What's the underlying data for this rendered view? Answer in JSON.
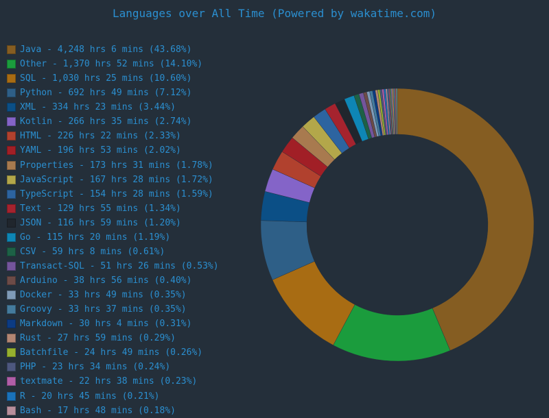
{
  "chart_data": {
    "type": "pie",
    "variant": "donut",
    "title": "Languages over All Time (Powered by wakatime.com)",
    "legend_position": "left",
    "slices": [
      {
        "name": "Java",
        "label": "Java - 4,248 hrs 6 mins (43.68%)",
        "percent": 43.68,
        "color": "#855d22"
      },
      {
        "name": "Other",
        "label": "Other - 1,370 hrs 52 mins (14.10%)",
        "percent": 14.1,
        "color": "#1b9c3d"
      },
      {
        "name": "SQL",
        "label": "SQL - 1,030 hrs 25 mins (10.60%)",
        "percent": 10.6,
        "color": "#a86c13"
      },
      {
        "name": "Python",
        "label": "Python - 692 hrs 49 mins (7.12%)",
        "percent": 7.12,
        "color": "#2e5f87"
      },
      {
        "name": "XML",
        "label": "XML - 334 hrs 23 mins (3.44%)",
        "percent": 3.44,
        "color": "#0b4f86"
      },
      {
        "name": "Kotlin",
        "label": "Kotlin - 266 hrs 35 mins (2.74%)",
        "percent": 2.74,
        "color": "#8464c8"
      },
      {
        "name": "HTML",
        "label": "HTML - 226 hrs 22 mins (2.33%)",
        "percent": 2.33,
        "color": "#b1412e"
      },
      {
        "name": "YAML",
        "label": "YAML - 196 hrs 53 mins (2.02%)",
        "percent": 2.02,
        "color": "#a11f26"
      },
      {
        "name": "Properties",
        "label": "Properties - 173 hrs 31 mins (1.78%)",
        "percent": 1.78,
        "color": "#a87a4f"
      },
      {
        "name": "JavaScript",
        "label": "JavaScript - 167 hrs 28 mins (1.72%)",
        "percent": 1.72,
        "color": "#b3a74a"
      },
      {
        "name": "TypeScript",
        "label": "TypeScript - 154 hrs 28 mins (1.59%)",
        "percent": 1.59,
        "color": "#2d64a0"
      },
      {
        "name": "Text",
        "label": "Text - 129 hrs 55 mins (1.34%)",
        "percent": 1.34,
        "color": "#a5232e"
      },
      {
        "name": "JSON",
        "label": "JSON - 116 hrs 59 mins (1.20%)",
        "percent": 1.2,
        "color": "#20262d"
      },
      {
        "name": "Go",
        "label": "Go - 115 hrs 20 mins (1.19%)",
        "percent": 1.19,
        "color": "#0e86b5"
      },
      {
        "name": "CSV",
        "label": "CSV - 59 hrs 8 mins (0.61%)",
        "percent": 0.61,
        "color": "#1d6146"
      },
      {
        "name": "Transact-SQL",
        "label": "Transact-SQL - 51 hrs 26 mins (0.53%)",
        "percent": 0.53,
        "color": "#74559c"
      },
      {
        "name": "Arduino",
        "label": "Arduino - 38 hrs 56 mins (0.40%)",
        "percent": 0.4,
        "color": "#6d4b47"
      },
      {
        "name": "Docker",
        "label": "Docker - 33 hrs 49 mins (0.35%)",
        "percent": 0.35,
        "color": "#7f9bb8"
      },
      {
        "name": "Groovy",
        "label": "Groovy - 33 hrs 37 mins (0.35%)",
        "percent": 0.35,
        "color": "#447b9d"
      },
      {
        "name": "Markdown",
        "label": "Markdown - 30 hrs 4 mins (0.31%)",
        "percent": 0.31,
        "color": "#0c3b83"
      },
      {
        "name": "Rust",
        "label": "Rust - 27 hrs 59 mins (0.29%)",
        "percent": 0.29,
        "color": "#b38673"
      },
      {
        "name": "Batchfile",
        "label": "Batchfile - 24 hrs 49 mins (0.26%)",
        "percent": 0.26,
        "color": "#96b02e"
      },
      {
        "name": "PHP",
        "label": "PHP - 23 hrs 34 mins (0.24%)",
        "percent": 0.24,
        "color": "#4d577e"
      },
      {
        "name": "textmate",
        "label": "textmate - 22 hrs 38 mins (0.23%)",
        "percent": 0.23,
        "color": "#b15ea8"
      },
      {
        "name": "R",
        "label": "R - 20 hrs 45 mins (0.21%)",
        "percent": 0.21,
        "color": "#1a72ba"
      },
      {
        "name": "Bash",
        "label": "Bash - 17 hrs 48 mins (0.18%)",
        "percent": 0.18,
        "color": "#b98f9c"
      }
    ]
  }
}
